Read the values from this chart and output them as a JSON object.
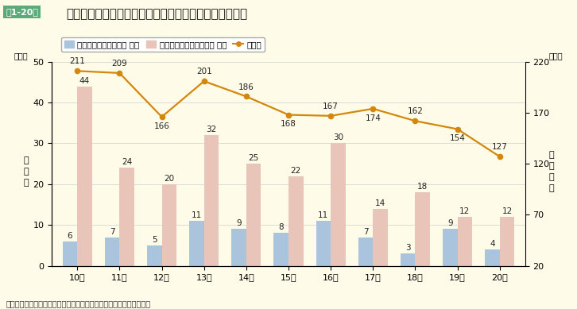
{
  "title": "チャイルドシート使用有無別死者数及び重傷者数の推移",
  "title_box": "第1-20図",
  "years": [
    "10年",
    "11年",
    "12年",
    "13年",
    "14年",
    "15年",
    "16年",
    "17年",
    "18年",
    "19年",
    "20年"
  ],
  "child_seat_use": [
    6,
    7,
    5,
    11,
    9,
    8,
    11,
    7,
    3,
    9,
    4
  ],
  "child_seat_nouse": [
    44,
    24,
    20,
    32,
    25,
    22,
    30,
    14,
    18,
    12,
    12
  ],
  "heavy_injured": [
    211,
    209,
    166,
    201,
    186,
    168,
    167,
    174,
    162,
    154,
    127
  ],
  "bar_color_use": "#aac4de",
  "bar_color_nouse": "#e8c5b8",
  "line_color": "#d4870a",
  "background_color": "#fefce8",
  "ylabel_left": "死\n者\n数",
  "ylabel_right": "重\n傷\n者\n数",
  "ylim_left": [
    0,
    50
  ],
  "ylim_right": [
    20,
    220
  ],
  "yticks_left": [
    0,
    10,
    20,
    30,
    40,
    50
  ],
  "yticks_right": [
    20,
    70,
    120,
    170,
    220
  ],
  "note": "注　警察庁資料により作成。ただし、「使用不明」は省略している。",
  "legend_use": "チャイルドシート使用 死者",
  "legend_nouse": "チャイルドシート不使用 死者",
  "legend_heavy": "重傷者",
  "bar_width": 0.35,
  "title_fontsize": 11,
  "axis_fontsize": 8,
  "label_fontsize": 7.5,
  "annotation_fontsize": 7.5,
  "title_box_color": "#5aaa7a",
  "grid_color": "#d0d0d0"
}
